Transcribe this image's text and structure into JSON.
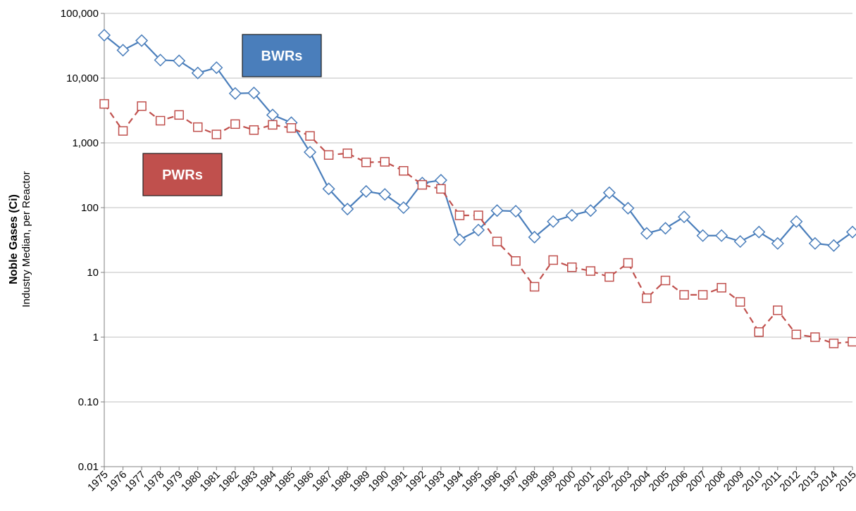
{
  "chart_data": {
    "type": "line",
    "log_scale": true,
    "grid": true,
    "ylabel": "Noble Gases (Ci)",
    "ylabel2": "Industry Median, per Reactor",
    "categories": [
      "1975",
      "1976",
      "1977",
      "1978",
      "1979",
      "1980",
      "1981",
      "1982",
      "1983",
      "1984",
      "1985",
      "1986",
      "1987",
      "1988",
      "1989",
      "1990",
      "1991",
      "1992",
      "1993",
      "1994",
      "1995",
      "1996",
      "1997",
      "1998",
      "1999",
      "2000",
      "2001",
      "2002",
      "2003",
      "2004",
      "2005",
      "2006",
      "2007",
      "2008",
      "2009",
      "2010",
      "2011",
      "2012",
      "2013",
      "2014",
      "2015"
    ],
    "ylim": [
      0.01,
      100000
    ],
    "yticks": [
      0.01,
      {
        "value": 0.1,
        "label": "0.10"
      },
      1,
      10,
      100,
      {
        "value": 1000,
        "label": "1,000"
      },
      {
        "value": 10000,
        "label": "10,000"
      },
      {
        "value": 100000,
        "label": "100,000"
      }
    ],
    "series": [
      {
        "name": "BWRs",
        "color": "#4a7ebb",
        "marker": "diamond",
        "dashed": false,
        "values": [
          46000,
          27000,
          38000,
          19000,
          18500,
          12000,
          14500,
          5800,
          5900,
          2700,
          2050,
          720,
          195,
          95,
          178,
          160,
          100,
          240,
          265,
          32,
          45,
          90,
          88,
          35,
          61,
          76,
          90,
          170,
          98,
          40,
          48,
          72,
          37,
          37,
          30,
          42,
          28,
          61,
          28,
          26,
          42
        ]
      },
      {
        "name": "PWRs",
        "color": "#c0504d",
        "marker": "square",
        "dashed": true,
        "values": [
          4000,
          1530,
          3700,
          2200,
          2700,
          1750,
          1350,
          1950,
          1580,
          1900,
          1700,
          1280,
          650,
          690,
          500,
          510,
          370,
          225,
          195,
          76,
          76,
          30,
          15,
          6,
          15.5,
          12,
          10.5,
          8.5,
          14,
          4,
          7.5,
          4.5,
          4.5,
          5.8,
          3.5,
          1.2,
          2.6,
          1.1,
          1.0,
          0.8,
          0.85
        ]
      }
    ]
  }
}
